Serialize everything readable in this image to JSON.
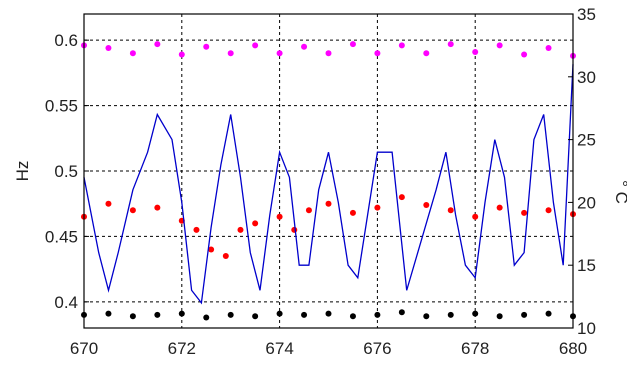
{
  "chart_data": {
    "type": "scatter",
    "title": "",
    "xlabel": "",
    "ylabel": "Hz",
    "y2label": "° C",
    "xlim": [
      670,
      680
    ],
    "ylim": [
      0.38,
      0.62
    ],
    "y2lim": [
      10,
      35
    ],
    "grid": true,
    "x_ticks": [
      "670",
      "672",
      "674",
      "676",
      "678",
      "680"
    ],
    "y_ticks": [
      "0.4",
      "0.45",
      "0.5",
      "0.55",
      "0.6"
    ],
    "y2_ticks": [
      "10",
      "15",
      "20",
      "25",
      "30",
      "35"
    ],
    "colors": {
      "magenta": "#ff00ff",
      "red": "#ff0000",
      "black": "#000000",
      "blue": "#0000cc",
      "grid": "#000000"
    },
    "series": [
      {
        "axis": "left",
        "style": "markers",
        "color": "#ff00ff",
        "x": [
          670.0,
          670.5,
          671.0,
          671.5,
          672.0,
          672.5,
          673.0,
          673.5,
          674.0,
          674.5,
          675.0,
          675.5,
          676.0,
          676.5,
          677.0,
          677.5,
          678.0,
          678.5,
          679.0,
          679.5,
          680.0
        ],
        "y": [
          0.596,
          0.594,
          0.59,
          0.597,
          0.589,
          0.595,
          0.59,
          0.596,
          0.59,
          0.595,
          0.59,
          0.597,
          0.59,
          0.596,
          0.59,
          0.597,
          0.591,
          0.596,
          0.589,
          0.594,
          0.588
        ]
      },
      {
        "axis": "left",
        "style": "markers",
        "color": "#ff0000",
        "x": [
          670.0,
          670.5,
          671.0,
          671.5,
          672.0,
          672.3,
          672.6,
          672.9,
          673.2,
          673.5,
          674.0,
          674.3,
          674.6,
          675.0,
          675.5,
          676.0,
          676.5,
          677.0,
          677.5,
          678.0,
          678.5,
          679.0,
          679.5,
          680.0
        ],
        "y": [
          0.465,
          0.475,
          0.47,
          0.472,
          0.462,
          0.455,
          0.44,
          0.435,
          0.455,
          0.46,
          0.465,
          0.455,
          0.47,
          0.475,
          0.468,
          0.472,
          0.48,
          0.474,
          0.47,
          0.465,
          0.472,
          0.468,
          0.47,
          0.467
        ]
      },
      {
        "axis": "left",
        "style": "markers",
        "color": "#000000",
        "x": [
          670.0,
          670.5,
          671.0,
          671.5,
          672.0,
          672.5,
          673.0,
          673.5,
          674.0,
          674.5,
          675.0,
          675.5,
          676.0,
          676.5,
          677.0,
          677.5,
          678.0,
          678.5,
          679.0,
          679.5,
          680.0
        ],
        "y": [
          0.39,
          0.391,
          0.389,
          0.39,
          0.391,
          0.388,
          0.39,
          0.389,
          0.391,
          0.39,
          0.391,
          0.389,
          0.39,
          0.392,
          0.389,
          0.39,
          0.391,
          0.389,
          0.39,
          0.391,
          0.389
        ]
      },
      {
        "axis": "right",
        "style": "line",
        "color": "#0000cc",
        "x": [
          670.0,
          670.3,
          670.5,
          670.7,
          671.0,
          671.3,
          671.5,
          671.8,
          672.0,
          672.2,
          672.4,
          672.6,
          672.8,
          673.0,
          673.2,
          673.4,
          673.6,
          673.8,
          674.0,
          674.2,
          674.4,
          674.6,
          674.8,
          675.0,
          675.2,
          675.4,
          675.6,
          675.8,
          676.0,
          676.3,
          676.6,
          676.9,
          677.2,
          677.4,
          677.6,
          677.8,
          678.0,
          678.2,
          678.4,
          678.6,
          678.8,
          679.0,
          679.2,
          679.4,
          679.6,
          679.8,
          680.0
        ],
        "y": [
          22,
          16,
          13,
          16,
          21,
          24,
          27,
          25,
          20,
          13,
          12,
          18,
          23,
          27,
          22,
          16,
          13,
          19,
          24,
          22,
          15,
          15,
          21,
          24,
          20,
          15,
          14,
          19,
          24,
          24,
          13,
          17,
          21,
          24,
          19,
          15,
          14,
          20,
          25,
          22,
          15,
          16,
          25,
          27,
          20,
          15,
          31
        ]
      }
    ]
  }
}
